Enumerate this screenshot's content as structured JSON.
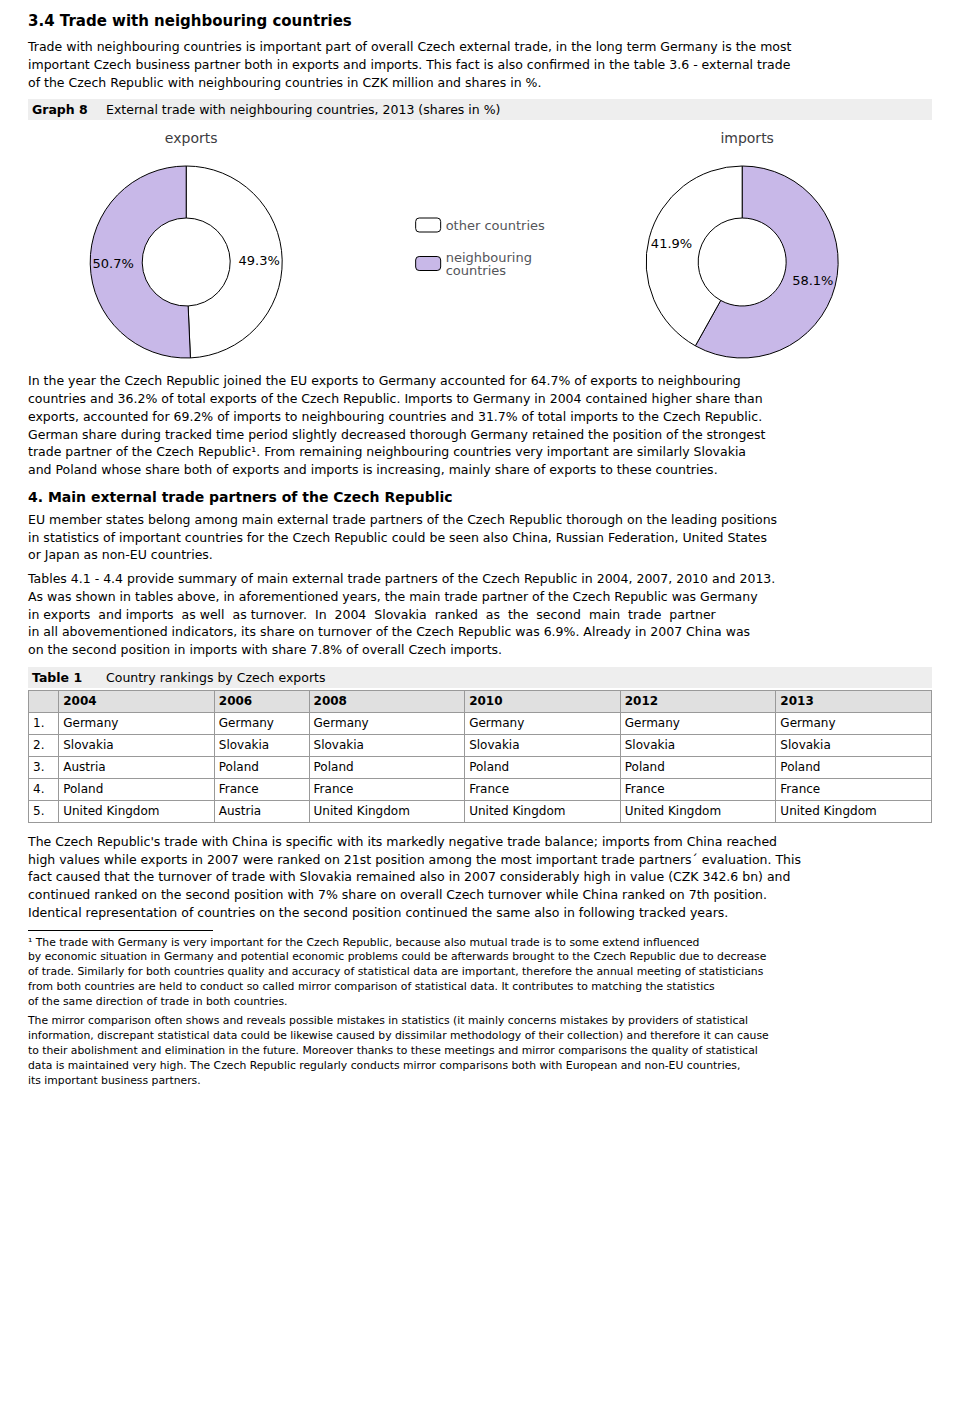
{
  "page_title": "3.4   Trade with neighbouring countries",
  "intro_text": "Trade with neighbouring countries is important part of overall Czech external trade, in the long term Germany is the most\nimportant Czech business partner both in exports and imports. This fact is also confirmed in the table 3.6 - external trade\nof the Czech Republic with neighbouring countries in CZK million and shares in %.",
  "graph_label": "Graph 8",
  "graph_title": "External trade with neighbouring countries, 2013 (shares in %)",
  "chart_data": [
    {
      "type": "pie",
      "title": "exports",
      "categories": [
        "other countries",
        "neighbouring\ncountries"
      ],
      "values": [
        49.3,
        50.7
      ],
      "value_labels": [
        "49.3%",
        "50.7%"
      ],
      "colors": [
        "#ffffff",
        "#c8b8e8"
      ],
      "data_labels": true,
      "legend": "center"
    },
    {
      "type": "pie",
      "title": "imports",
      "categories": [
        "neighbouring\ncountries",
        "other countries"
      ],
      "values": [
        58.1,
        41.9
      ],
      "value_labels": [
        "58.1%",
        "41.9%"
      ],
      "colors": [
        "#c8b8e8",
        "#ffffff"
      ],
      "data_labels": true,
      "legend": "center"
    }
  ],
  "texts_after_graph": [
    "In the year the Czech Republic joined the EU exports to Germany accounted for 64.7% of exports to neighbouring\ncountries and 36.2% of total exports of the Czech Republic. Imports to Germany in 2004 contained higher share than\nexports, accounted for 69.2% of imports to neighbouring countries and 31.7% of total imports to the Czech Republic.\nGerman share during tracked time period slightly decreased thorough Germany retained the position of the strongest\ntrade partner of the Czech Republic¹. From remaining neighbouring countries very important are similarly Slovakia\nand Poland whose share both of exports and imports is increasing, mainly share of exports to these countries."
  ],
  "section_title": "4.     Main external trade partners of the Czech Republic",
  "texts_after_section": [
    "EU member states belong among main external trade partners of the Czech Republic thorough on the leading positions\nin statistics of important countries for the Czech Republic could be seen also China, Russian Federation, United States\nor Japan as non-EU countries.",
    "Tables 4.1 - 4.4 provide summary of main external trade partners of the Czech Republic in 2004, 2007, 2010 and 2013.\nAs was shown in tables above, in aforementioned years, the main trade partner of the Czech Republic was Germany\nin exports  and imports  as well  as turnover.  In  2004  Slovakia  ranked  as  the  second  main  trade  partner\nin all abovementioned indicators, its share on turnover of the Czech Republic was 6.9%. Already in 2007 China was\non the second position in imports with share 7.8% of overall Czech imports."
  ],
  "table": {
    "label": "Table 1",
    "title": "Country rankings by Czech exports",
    "columns": [
      null,
      "2004",
      "2006",
      "2008",
      "2010",
      "2012",
      "2013"
    ],
    "rows": [
      [
        "1.",
        "Germany",
        "Germany",
        "Germany",
        "Germany",
        "Germany",
        "Germany"
      ],
      [
        "2.",
        "Slovakia",
        "Slovakia",
        "Slovakia",
        "Slovakia",
        "Slovakia",
        "Slovakia"
      ],
      [
        "3.",
        "Austria",
        "Poland",
        "Poland",
        "Poland",
        "Poland",
        "Poland"
      ],
      [
        "4.",
        "Poland",
        "France",
        "France",
        "France",
        "France",
        "France"
      ],
      [
        "5.",
        "United Kingdom",
        "Austria",
        "United Kingdom",
        "United Kingdom",
        "United Kingdom",
        "United Kingdom"
      ]
    ]
  },
  "texts_after_table": [
    "The Czech Republic's trade with China is specific with its markedly negative trade balance; imports from China reached\nhigh values while exports in 2007 were ranked on 21st position among the most important trade partners´ evaluation. This\nfact caused that the turnover of trade with Slovakia remained also in 2007 considerably high in value (CZK 342.6 bn) and\ncontinued ranked on the second position with 7% share on overall Czech turnover while China ranked on 7th position.\nIdentical representation of countries on the second position continued the same also in following tracked years."
  ],
  "footnotes": [
    "¹ The trade with Germany is very important for the Czech Republic, because also mutual trade is to some extend influenced\nby economic situation in Germany and potential economic problems could be afterwards brought to the Czech Republic due to decrease\nof trade. Similarly for both countries quality and accuracy of statistical data are important, therefore the annual meeting of statisticians\nfrom both countries are held to conduct so called mirror comparison of statistical data. It contributes to matching the statistics\nof the same direction of trade in both countries.",
    "The mirror comparison often shows and reveals possible mistakes in statistics (it mainly concerns mistakes by providers of statistical\ninformation, discrepant statistical data could be likewise caused by dissimilar methodology of their collection) and therefore it can cause\nto their abolishment and elimination in the future. Moreover thanks to these meetings and mirror comparisons the quality of statistical\ndata is maintained very high. The Czech Republic regularly conducts mirror comparisons both with European and non-EU countries,\nits important business partners."
  ]
}
